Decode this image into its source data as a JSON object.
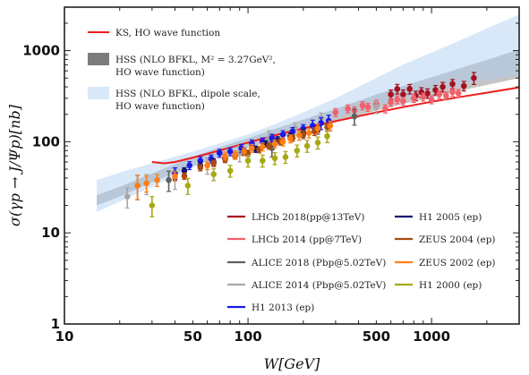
{
  "chart_data": {
    "type": "scatter",
    "xlabel": "W[GeV]",
    "ylabel": "σ(γp → J/Ψp)[nb]",
    "x_scale": "log",
    "y_scale": "log",
    "xlim": [
      10,
      3000
    ],
    "ylim": [
      1,
      3000
    ],
    "x_ticks": [
      {
        "v": 10,
        "label": "10"
      },
      {
        "v": 50,
        "label": "50"
      },
      {
        "v": 100,
        "label": "100"
      },
      {
        "v": 500,
        "label": "500"
      },
      {
        "v": 1000,
        "label": "1000"
      }
    ],
    "y_ticks": [
      {
        "v": 1,
        "label": "1"
      },
      {
        "v": 10,
        "label": "10"
      },
      {
        "v": 100,
        "label": "100"
      },
      {
        "v": 1000,
        "label": "1000"
      }
    ],
    "grid": false,
    "theory": [
      {
        "name": "KS, HO wave function",
        "name_lines": [
          "KS, HO wave function"
        ],
        "kind": "line",
        "color": "#ee1c1c",
        "x": [
          30,
          35,
          40,
          50,
          70,
          100,
          150,
          200,
          300,
          500,
          700,
          1000,
          1500,
          2000,
          3000
        ],
        "y": [
          60,
          58,
          60,
          67,
          80,
          98,
          122,
          140,
          168,
          210,
          240,
          275,
          315,
          345,
          395
        ]
      },
      {
        "name": "HSS (NLO BFKL, M² = 3.27GeV², HO wave function)",
        "name_lines": [
          "HSS (NLO BFKL, M² = 3.27GeV²,",
          "HO wave function)"
        ],
        "kind": "band",
        "color": "#6e6e6e",
        "x": [
          15,
          20,
          30,
          50,
          70,
          100,
          150,
          200,
          300,
          500,
          700,
          1000,
          1500,
          2000,
          3000
        ],
        "low": [
          20,
          25,
          36,
          54,
          68,
          85,
          110,
          130,
          165,
          220,
          260,
          305,
          370,
          420,
          500
        ],
        "high": [
          26,
          32,
          45,
          68,
          87,
          110,
          145,
          175,
          230,
          330,
          410,
          510,
          660,
          790,
          1030
        ]
      },
      {
        "name": "HSS (NLO BFKL, dipole scale, HO wave function)",
        "name_lines": [
          "HSS (NLO BFKL, dipole scale,",
          "HO wave function)"
        ],
        "kind": "band",
        "color": "#a9cbef",
        "x": [
          15,
          20,
          30,
          50,
          70,
          100,
          150,
          200,
          300,
          500,
          700,
          1000,
          1500,
          2000,
          3000
        ],
        "low": [
          17,
          22,
          32,
          52,
          68,
          90,
          120,
          145,
          185,
          250,
          300,
          350,
          420,
          470,
          550
        ],
        "high": [
          38,
          46,
          58,
          78,
          96,
          120,
          165,
          210,
          300,
          500,
          700,
          950,
          1350,
          1750,
          2500
        ]
      }
    ],
    "series": [
      {
        "name": "LHCb 2018(pp@13TeV)",
        "color": "#a8101c",
        "x": [
          600,
          650,
          700,
          760,
          820,
          880,
          950,
          1050,
          1150,
          1300,
          1500,
          1700
        ],
        "y": [
          330,
          380,
          330,
          380,
          320,
          350,
          340,
          370,
          400,
          430,
          410,
          500
        ],
        "err": [
          0.12,
          0.12,
          0.12,
          0.12,
          0.12,
          0.12,
          0.12,
          0.12,
          0.12,
          0.12,
          0.12,
          0.15
        ]
      },
      {
        "name": "LHCb 2014 (pp@7TeV)",
        "color": "#f4606a",
        "x": [
          300,
          350,
          380,
          420,
          450,
          500,
          560,
          600,
          650,
          700,
          800,
          900,
          1000,
          1100,
          1200,
          1300,
          1400
        ],
        "y": [
          210,
          230,
          220,
          250,
          240,
          260,
          230,
          270,
          290,
          280,
          300,
          310,
          290,
          330,
          320,
          350,
          340
        ],
        "err": [
          0.1,
          0.1,
          0.1,
          0.1,
          0.1,
          0.1,
          0.1,
          0.1,
          0.1,
          0.1,
          0.1,
          0.1,
          0.1,
          0.1,
          0.1,
          0.1,
          0.1
        ]
      },
      {
        "name": "ALICE 2018 (Pbp@5.02TeV)",
        "color": "#606060",
        "x": [
          25,
          37,
          135,
          380
        ],
        "y": [
          33,
          38,
          85,
          190
        ],
        "err": [
          0.3,
          0.25,
          0.2,
          0.2
        ]
      },
      {
        "name": "ALICE 2014 (Pbp@5.02TeV)",
        "color": "#a8a8a8",
        "x": [
          22,
          28,
          40,
          60,
          90,
          130,
          180,
          250,
          500
        ],
        "y": [
          25,
          35,
          40,
          55,
          75,
          110,
          140,
          180,
          240
        ],
        "err": [
          0.25,
          0.25,
          0.25,
          0.2,
          0.2,
          0.2,
          0.15,
          0.15,
          0.15
        ]
      },
      {
        "name": "H1 2013 (ep)",
        "color": "#1a1ae6",
        "x": [
          40,
          48,
          55,
          63,
          70,
          80,
          92,
          105,
          120,
          135,
          155,
          175,
          200,
          225,
          250,
          275
        ],
        "y": [
          45,
          55,
          62,
          65,
          75,
          78,
          85,
          95,
          100,
          110,
          120,
          130,
          140,
          150,
          160,
          170
        ],
        "err": [
          0.15,
          0.1,
          0.1,
          0.1,
          0.1,
          0.1,
          0.1,
          0.1,
          0.1,
          0.1,
          0.1,
          0.1,
          0.1,
          0.15,
          0.15,
          0.15
        ]
      },
      {
        "name": "H1 2005 (ep)",
        "color": "#12126e",
        "x": [
          45,
          55,
          65,
          75,
          85,
          95,
          110,
          125,
          145,
          170,
          200,
          240,
          280
        ],
        "y": [
          48,
          55,
          60,
          66,
          70,
          78,
          83,
          95,
          105,
          115,
          125,
          135,
          150
        ],
        "err": [
          0.08,
          0.08,
          0.08,
          0.08,
          0.08,
          0.08,
          0.08,
          0.08,
          0.08,
          0.08,
          0.1,
          0.1,
          0.12
        ]
      },
      {
        "name": "ZEUS 2004 (ep)",
        "color": "#a84a10",
        "x": [
          45,
          55,
          65,
          75,
          85,
          100,
          115,
          130,
          150,
          175,
          200,
          230,
          270
        ],
        "y": [
          42,
          52,
          58,
          64,
          70,
          75,
          82,
          90,
          100,
          110,
          120,
          130,
          145
        ],
        "err": [
          0.08,
          0.08,
          0.08,
          0.08,
          0.08,
          0.08,
          0.08,
          0.08,
          0.08,
          0.08,
          0.1,
          0.1,
          0.1
        ]
      },
      {
        "name": "ZEUS 2002 (ep)",
        "color": "#ff7e14",
        "x": [
          25,
          28,
          32,
          40,
          60,
          75,
          85,
          95,
          105,
          120,
          140,
          155,
          170,
          190,
          215,
          240,
          280
        ],
        "y": [
          33,
          35,
          38,
          42,
          55,
          70,
          72,
          78,
          85,
          88,
          95,
          100,
          108,
          118,
          125,
          140,
          150
        ],
        "err": [
          0.3,
          0.2,
          0.15,
          0.12,
          0.1,
          0.1,
          0.1,
          0.1,
          0.1,
          0.1,
          0.1,
          0.1,
          0.1,
          0.12,
          0.12,
          0.12,
          0.12
        ]
      },
      {
        "name": "H1 2000 (ep)",
        "color": "#a8a814",
        "x": [
          30,
          47,
          65,
          80,
          100,
          120,
          140,
          160,
          185,
          210,
          240,
          270
        ],
        "y": [
          20,
          33,
          44,
          48,
          62,
          62,
          66,
          68,
          80,
          90,
          98,
          115
        ],
        "err": [
          0.25,
          0.2,
          0.15,
          0.15,
          0.15,
          0.15,
          0.15,
          0.15,
          0.15,
          0.15,
          0.15,
          0.15
        ]
      }
    ]
  }
}
